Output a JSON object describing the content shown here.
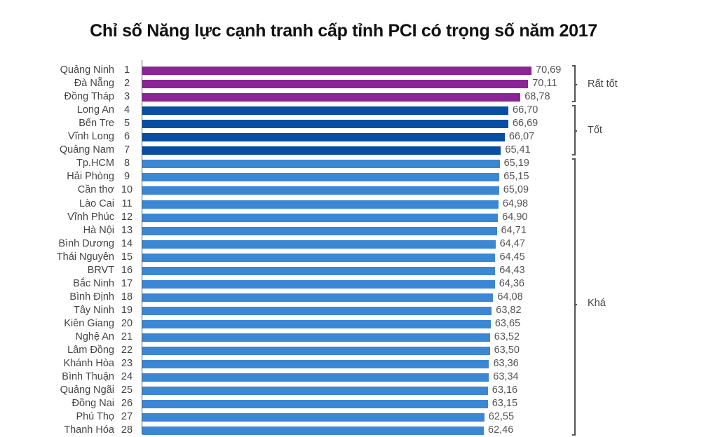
{
  "title": "Chỉ số Năng lực cạnh tranh cấp tỉnh PCI có trọng số năm 2017",
  "colors": {
    "rat_tot": "#8b2596",
    "tot": "#0a4ea3",
    "kha": "#3b87d4"
  },
  "groups": [
    {
      "label": "Rất tốt",
      "from_rank": 1,
      "to_rank": 3,
      "color": "#8b2596"
    },
    {
      "label": "Tốt",
      "from_rank": 4,
      "to_rank": 7,
      "color": "#0a4ea3"
    },
    {
      "label": "Khá",
      "from_rank": 8,
      "to_rank": 28,
      "color": "#3b87d4"
    }
  ],
  "chart_data": {
    "type": "bar",
    "orientation": "horizontal",
    "title": "Chỉ số Năng lực cạnh tranh cấp tỉnh PCI có trọng số năm 2017",
    "xlabel": "",
    "ylabel": "",
    "grid": false,
    "legend": "none (group brackets on right: Rất tốt, Tốt, Khá)",
    "categories": [
      "Quảng Ninh",
      "Đà Nẵng",
      "Đồng Tháp",
      "Long An",
      "Bến Tre",
      "Vĩnh Long",
      "Quảng Nam",
      "Tp.HCM",
      "Hải Phòng",
      "Cần thơ",
      "Lào Cai",
      "Vĩnh Phúc",
      "Hà Nội",
      "Bình Dương",
      "Thái Nguyên",
      "BRVT",
      "Bắc Ninh",
      "Bình Định",
      "Tây Ninh",
      "Kiên Giang",
      "Nghệ An",
      "Lâm Đồng",
      "Khánh Hòa",
      "Bình Thuận",
      "Quảng Ngãi",
      "Đồng Nai",
      "Phú Thọ",
      "Thanh Hóa"
    ],
    "ranks": [
      1,
      2,
      3,
      4,
      5,
      6,
      7,
      8,
      9,
      10,
      11,
      12,
      13,
      14,
      15,
      16,
      17,
      18,
      19,
      20,
      21,
      22,
      23,
      24,
      25,
      26,
      27,
      28
    ],
    "values": [
      70.69,
      70.11,
      68.78,
      66.7,
      66.69,
      66.07,
      65.41,
      65.19,
      65.15,
      65.09,
      64.98,
      64.9,
      64.71,
      64.47,
      64.45,
      64.43,
      64.36,
      64.08,
      63.82,
      63.65,
      63.52,
      63.5,
      63.36,
      63.34,
      63.16,
      63.15,
      62.55,
      62.46
    ],
    "value_labels": [
      "70,69",
      "70,11",
      "68,78",
      "66,70",
      "66,69",
      "66,07",
      "65,41",
      "65,19",
      "65,15",
      "65,09",
      "64,98",
      "64,90",
      "64,71",
      "64,47",
      "64,45",
      "64,43",
      "64,36",
      "64,08",
      "63,82",
      "63,65",
      "63,52",
      "63,50",
      "63,36",
      "63,34",
      "63,16",
      "63,15",
      "62,55",
      "62,46"
    ],
    "groups": [
      "Rất tốt",
      "Rất tốt",
      "Rất tốt",
      "Tốt",
      "Tốt",
      "Tốt",
      "Tốt",
      "Khá",
      "Khá",
      "Khá",
      "Khá",
      "Khá",
      "Khá",
      "Khá",
      "Khá",
      "Khá",
      "Khá",
      "Khá",
      "Khá",
      "Khá",
      "Khá",
      "Khá",
      "Khá",
      "Khá",
      "Khá",
      "Khá",
      "Khá",
      "Khá"
    ]
  }
}
